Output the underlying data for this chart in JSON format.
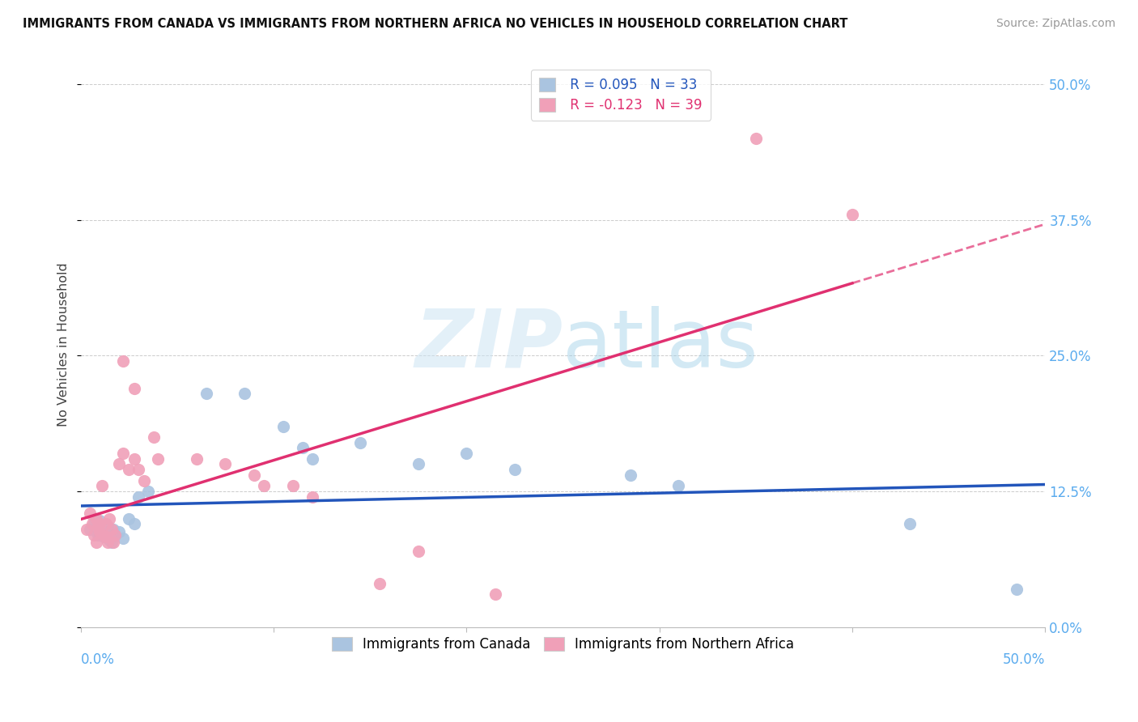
{
  "title": "IMMIGRANTS FROM CANADA VS IMMIGRANTS FROM NORTHERN AFRICA NO VEHICLES IN HOUSEHOLD CORRELATION CHART",
  "source": "Source: ZipAtlas.com",
  "ylabel": "No Vehicles in Household",
  "canada_color": "#aac4e0",
  "nafr_color": "#f0a0b8",
  "canada_line_color": "#2255bb",
  "nafr_line_color": "#e03070",
  "watermark_zip": "ZIP",
  "watermark_atlas": "atlas",
  "canada_x": [
    0.005,
    0.007,
    0.008,
    0.009,
    0.01,
    0.01,
    0.011,
    0.012,
    0.013,
    0.014,
    0.015,
    0.016,
    0.017,
    0.018,
    0.02,
    0.022,
    0.025,
    0.028,
    0.03,
    0.035,
    0.065,
    0.085,
    0.105,
    0.115,
    0.12,
    0.145,
    0.175,
    0.2,
    0.225,
    0.285,
    0.31,
    0.43,
    0.485
  ],
  "canada_y": [
    0.09,
    0.095,
    0.088,
    0.085,
    0.092,
    0.098,
    0.087,
    0.083,
    0.088,
    0.093,
    0.08,
    0.078,
    0.09,
    0.085,
    0.088,
    0.082,
    0.1,
    0.095,
    0.12,
    0.125,
    0.215,
    0.215,
    0.185,
    0.165,
    0.155,
    0.17,
    0.15,
    0.16,
    0.145,
    0.14,
    0.13,
    0.095,
    0.035
  ],
  "nafr_x": [
    0.003,
    0.005,
    0.006,
    0.007,
    0.008,
    0.008,
    0.009,
    0.01,
    0.01,
    0.011,
    0.012,
    0.013,
    0.013,
    0.014,
    0.015,
    0.016,
    0.017,
    0.018,
    0.02,
    0.022,
    0.025,
    0.028,
    0.03,
    0.033,
    0.038,
    0.04,
    0.022,
    0.028,
    0.06,
    0.075,
    0.09,
    0.095,
    0.11,
    0.12,
    0.155,
    0.175,
    0.215,
    0.35,
    0.4
  ],
  "nafr_y": [
    0.09,
    0.105,
    0.095,
    0.085,
    0.1,
    0.078,
    0.093,
    0.095,
    0.088,
    0.13,
    0.085,
    0.095,
    0.083,
    0.078,
    0.1,
    0.09,
    0.078,
    0.085,
    0.15,
    0.16,
    0.145,
    0.155,
    0.145,
    0.135,
    0.175,
    0.155,
    0.245,
    0.22,
    0.155,
    0.15,
    0.14,
    0.13,
    0.13,
    0.12,
    0.04,
    0.07,
    0.03,
    0.45,
    0.38
  ],
  "xlim": [
    0.0,
    0.5
  ],
  "ylim": [
    0.0,
    0.52
  ],
  "yticks": [
    0.0,
    0.125,
    0.25,
    0.375,
    0.5
  ],
  "ytick_labels": [
    "0.0%",
    "12.5%",
    "25.0%",
    "37.5%",
    "50.0%"
  ]
}
